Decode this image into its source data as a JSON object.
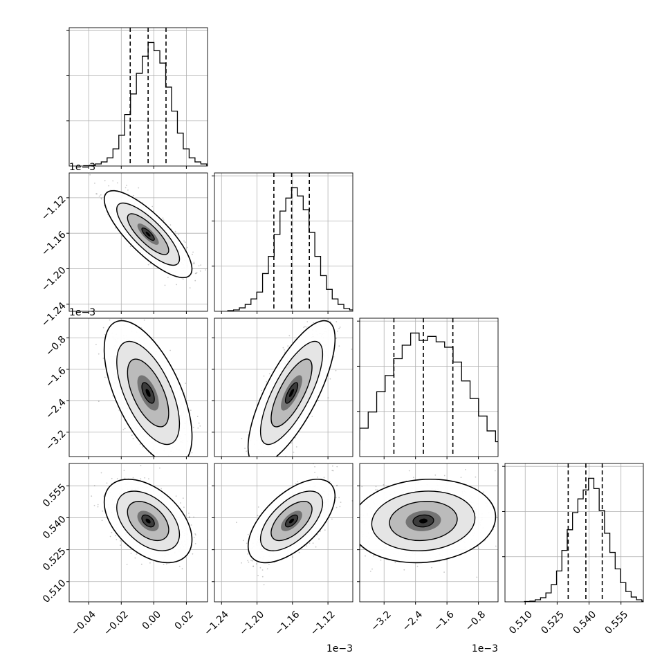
{
  "chart_data": {
    "type": "corner",
    "grid": true,
    "dimensions": [
      {
        "index": 0,
        "ticks": [
          -0.04,
          -0.02,
          0.0,
          0.02
        ],
        "tick_labels": [
          "−0.04",
          "−0.02",
          "0.00",
          "0.02"
        ],
        "range": [
          -0.052,
          0.033
        ],
        "offset_text": "",
        "quantiles": [
          -0.0145,
          -0.0035,
          0.0075
        ],
        "histogram": [
          0.5,
          1,
          3,
          6,
          12,
          25,
          45,
          75,
          105,
          135,
          160,
          180,
          168,
          150,
          115,
          80,
          48,
          25,
          12,
          6,
          3,
          1
        ]
      },
      {
        "index": 1,
        "ticks": [
          -1.24,
          -1.2,
          -1.16,
          -1.12
        ],
        "tick_labels": [
          "−1.24",
          "−1.20",
          "−1.16",
          "−1.12"
        ],
        "range": [
          -1.248,
          -1.092
        ],
        "offset_text": "1e−3",
        "quantiles": [
          -1.181,
          -1.161,
          -1.141
        ],
        "histogram": [
          1,
          2,
          5,
          10,
          18,
          28,
          55,
          80,
          112,
          146,
          165,
          180,
          168,
          148,
          115,
          80,
          52,
          32,
          18,
          10,
          4,
          2
        ]
      },
      {
        "index": 2,
        "ticks": [
          -3.2,
          -2.4,
          -1.6,
          -0.8
        ],
        "tick_labels": [
          "−3.2",
          "−2.4",
          "−1.6",
          "−0.8"
        ],
        "range": [
          -3.82,
          -0.3
        ],
        "offset_text": "1e−3",
        "quantiles": [
          -2.95,
          -2.2,
          -1.45
        ],
        "histogram": [
          1,
          3,
          6,
          12,
          25,
          42,
          66,
          96,
          120,
          145,
          165,
          183,
          172,
          178,
          170,
          162,
          140,
          112,
          86,
          60,
          38,
          22,
          12,
          5,
          2
        ]
      },
      {
        "index": 3,
        "ticks": [
          0.51,
          0.525,
          0.54,
          0.555
        ],
        "tick_labels": [
          "0.510",
          "0.525",
          "0.540",
          "0.555"
        ],
        "range": [
          0.5005,
          0.5655
        ],
        "offset_text": "",
        "quantiles": [
          0.5302,
          0.5385,
          0.5462
        ],
        "histogram": [
          0.5,
          1,
          3,
          6,
          13,
          25,
          45,
          75,
          105,
          130,
          150,
          163,
          180,
          165,
          133,
          100,
          72,
          48,
          28,
          15,
          7,
          3,
          1
        ]
      }
    ],
    "pairs": [
      {
        "row": 1,
        "col": 0,
        "mean": [
          -0.0035,
          -1.161
        ],
        "correlation": -0.8
      },
      {
        "row": 2,
        "col": 0,
        "mean": [
          -0.0035,
          -2.2
        ],
        "correlation": -0.6
      },
      {
        "row": 2,
        "col": 1,
        "mean": [
          -1.161,
          -2.2
        ],
        "correlation": 0.75
      },
      {
        "row": 3,
        "col": 0,
        "mean": [
          -0.0035,
          0.5385
        ],
        "correlation": -0.45
      },
      {
        "row": 3,
        "col": 1,
        "mean": [
          -1.161,
          0.5385
        ],
        "correlation": 0.6
      },
      {
        "row": 3,
        "col": 2,
        "mean": [
          -2.2,
          0.5385
        ],
        "correlation": 0.1
      }
    ]
  }
}
